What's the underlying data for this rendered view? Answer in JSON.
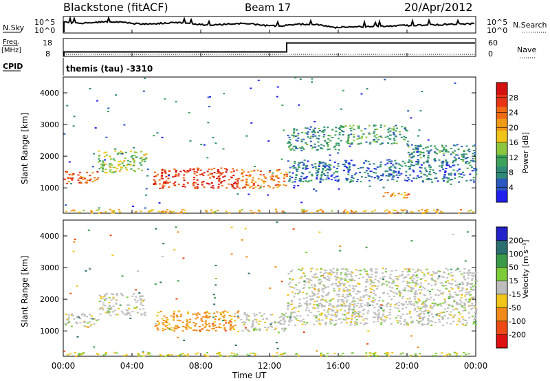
{
  "header": {
    "station": "Blackstone (fitACF)",
    "beam": "Beam 17",
    "date": "20/Apr/2012"
  },
  "sky_panel": {
    "left_label": "N.Sky",
    "right_label": "N.Search",
    "left_ticks": [
      "10^5",
      "10^0"
    ],
    "right_ticks": [
      "10^5",
      "10^0"
    ]
  },
  "freq_panel": {
    "label_line1": "Freq.",
    "label_line2": "[MHz]",
    "right_label": "Nave",
    "left_ticks": [
      "18",
      "8"
    ],
    "right_ticks": [
      "60",
      "0"
    ],
    "freq_step_hours": [
      0,
      13
    ],
    "freq_values_mhz": [
      10.5,
      15.5
    ]
  },
  "cpid": {
    "label": "CPID",
    "program": "themis (tau) -3310"
  },
  "chart_data": [
    {
      "type": "heatmap",
      "title": "",
      "xlabel": "Time UT",
      "ylabel": "Slant Range [km]",
      "xlim_hours": [
        0,
        24
      ],
      "ylim_km": [
        200,
        4500
      ],
      "x_tick_labels": [
        "00:00",
        "04:00",
        "08:00",
        "12:00",
        "16:00",
        "20:00",
        "00:00"
      ],
      "x_tick_hours": [
        0,
        4,
        8,
        12,
        16,
        20,
        24
      ],
      "y_ticks": [
        1000,
        2000,
        3000,
        4000
      ],
      "colorbar": {
        "label": "Power [dB]",
        "ticks": [
          4,
          8,
          12,
          16,
          20,
          24,
          28
        ],
        "range": [
          0,
          30
        ],
        "colors": [
          "#1f1ff0",
          "#2a58c0",
          "#2f8a7a",
          "#3ea35a",
          "#8cc63f",
          "#f0c418",
          "#f09a18",
          "#ef6a15",
          "#e93515",
          "#d41010"
        ]
      },
      "scatter_regions": [
        {
          "t0": 0.0,
          "t1": 2.0,
          "r0": 1150,
          "r1": 1560,
          "v": 24
        },
        {
          "t0": 2.0,
          "t1": 4.8,
          "r0": 1500,
          "r1": 2200,
          "v": 14
        },
        {
          "t0": 5.2,
          "t1": 10.2,
          "r0": 1000,
          "r1": 1650,
          "v": 26
        },
        {
          "t0": 10.3,
          "t1": 13.0,
          "r0": 1000,
          "r1": 1600,
          "v": 22
        },
        {
          "t0": 13.0,
          "t1": 16.0,
          "r0": 2200,
          "r1": 2950,
          "v": 8
        },
        {
          "t0": 16.0,
          "t1": 20.0,
          "r0": 2400,
          "r1": 3000,
          "v": 10
        },
        {
          "t0": 20.0,
          "t1": 24.0,
          "r0": 1800,
          "r1": 2400,
          "v": 8
        },
        {
          "t0": 13.0,
          "t1": 24.0,
          "r0": 1200,
          "r1": 1900,
          "v": 6
        },
        {
          "t0": 18.5,
          "t1": 20.2,
          "r0": 700,
          "r1": 900,
          "v": 20
        }
      ]
    },
    {
      "type": "heatmap",
      "title": "",
      "xlabel": "Time UT",
      "ylabel": "Slant Range [km]",
      "xlim_hours": [
        0,
        24
      ],
      "ylim_km": [
        200,
        4500
      ],
      "x_tick_labels": [
        "00:00",
        "04:00",
        "08:00",
        "12:00",
        "16:00",
        "20:00",
        "00:00"
      ],
      "x_tick_hours": [
        0,
        4,
        8,
        12,
        16,
        20,
        24
      ],
      "y_ticks": [
        1000,
        2000,
        3000,
        4000
      ],
      "colorbar": {
        "label": "Velocity [m s⁻¹]",
        "ticks": [
          200,
          100,
          50,
          15,
          -15,
          -50,
          -100,
          -200
        ],
        "colors": [
          "#2222c8",
          "#2a6e70",
          "#3a9a4a",
          "#7ccc3a",
          "#bdbdbd",
          "#f0c418",
          "#f08a18",
          "#ee4a15",
          "#e01010"
        ]
      },
      "scatter_regions": [
        {
          "t0": 0.0,
          "t1": 2.0,
          "r0": 1150,
          "r1": 1560,
          "v": 0
        },
        {
          "t0": 2.0,
          "t1": 4.8,
          "r0": 1500,
          "r1": 2200,
          "v": 0
        },
        {
          "t0": 5.2,
          "t1": 10.2,
          "r0": 1000,
          "r1": 1650,
          "v": -60
        },
        {
          "t0": 10.3,
          "t1": 13.0,
          "r0": 1000,
          "r1": 1600,
          "v": 0
        },
        {
          "t0": 13.0,
          "t1": 24.0,
          "r0": 1800,
          "r1": 3000,
          "v": 0
        },
        {
          "t0": 13.0,
          "t1": 24.0,
          "r0": 1200,
          "r1": 1900,
          "v": 0
        }
      ]
    }
  ]
}
